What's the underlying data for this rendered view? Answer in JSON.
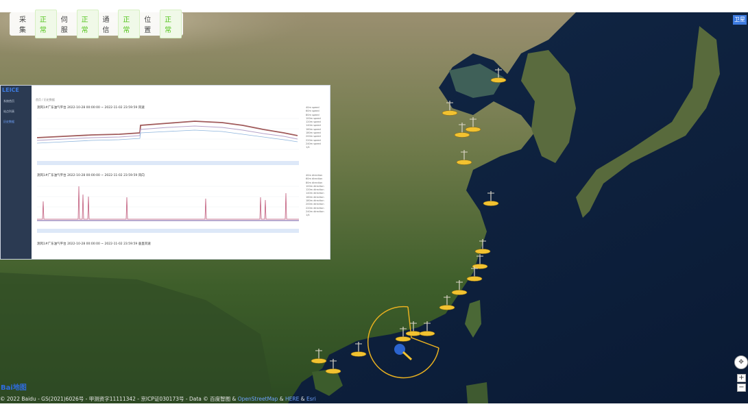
{
  "status_bar": [
    {
      "label": "采集",
      "value": "正常"
    },
    {
      "label": "伺服",
      "value": "正常"
    },
    {
      "label": "通信",
      "value": "正常"
    },
    {
      "label": "位置",
      "value": "正常"
    }
  ],
  "map_type_button": "卫星",
  "panel": {
    "logo": "LEICE",
    "sidebar": [
      "系统首页",
      "站点列表",
      "历史数据"
    ],
    "breadcrumb": "首页 / 历史数据",
    "charts": [
      {
        "title": "测风1#广东油气平台 2022-10-28 00:00:00 ~ 2022-11-02 23:59:59 风速"
      },
      {
        "title": "测风1#广东油气平台 2022-10-28 00:00:00 ~ 2022-11-02 23:59:59 风向"
      },
      {
        "title": "测风1#广东油气平台 2022-10-28 00:00:00 ~ 2022-11-02 23:59:59 垂直风速"
      }
    ],
    "legend_speed": [
      "40m speed",
      "60m speed",
      "80m speed",
      "100m speed",
      "120m speed",
      "140m speed",
      "160m speed",
      "180m speed",
      "200m speed",
      "220m speed",
      "240m speed"
    ],
    "legend_direction": [
      "40m direction",
      "60m direction",
      "80m direction",
      "100m direction",
      "120m direction",
      "140m direction",
      "160m direction",
      "180m direction",
      "200m direction",
      "220m direction",
      "240m direction"
    ],
    "legend_pager": "1/4"
  },
  "zoom": {
    "in": "+",
    "out": "−"
  },
  "copyright": {
    "prefix": "© 2022 Baidu - GS(2021)6026号 - 甲测资字11111342 - 京ICP证030173号 - Data © 百度智图 & ",
    "osm": "OpenStreetMap",
    "amp": " & ",
    "here": "HERE",
    "amp2": " & ",
    "esri": "Esri"
  },
  "baidu_logo": {
    "a": "Bai",
    "b": "地图"
  },
  "colors": {
    "marker": "#f2c230",
    "ok_text": "#52c41a",
    "selection_ring": "#e8b020"
  }
}
